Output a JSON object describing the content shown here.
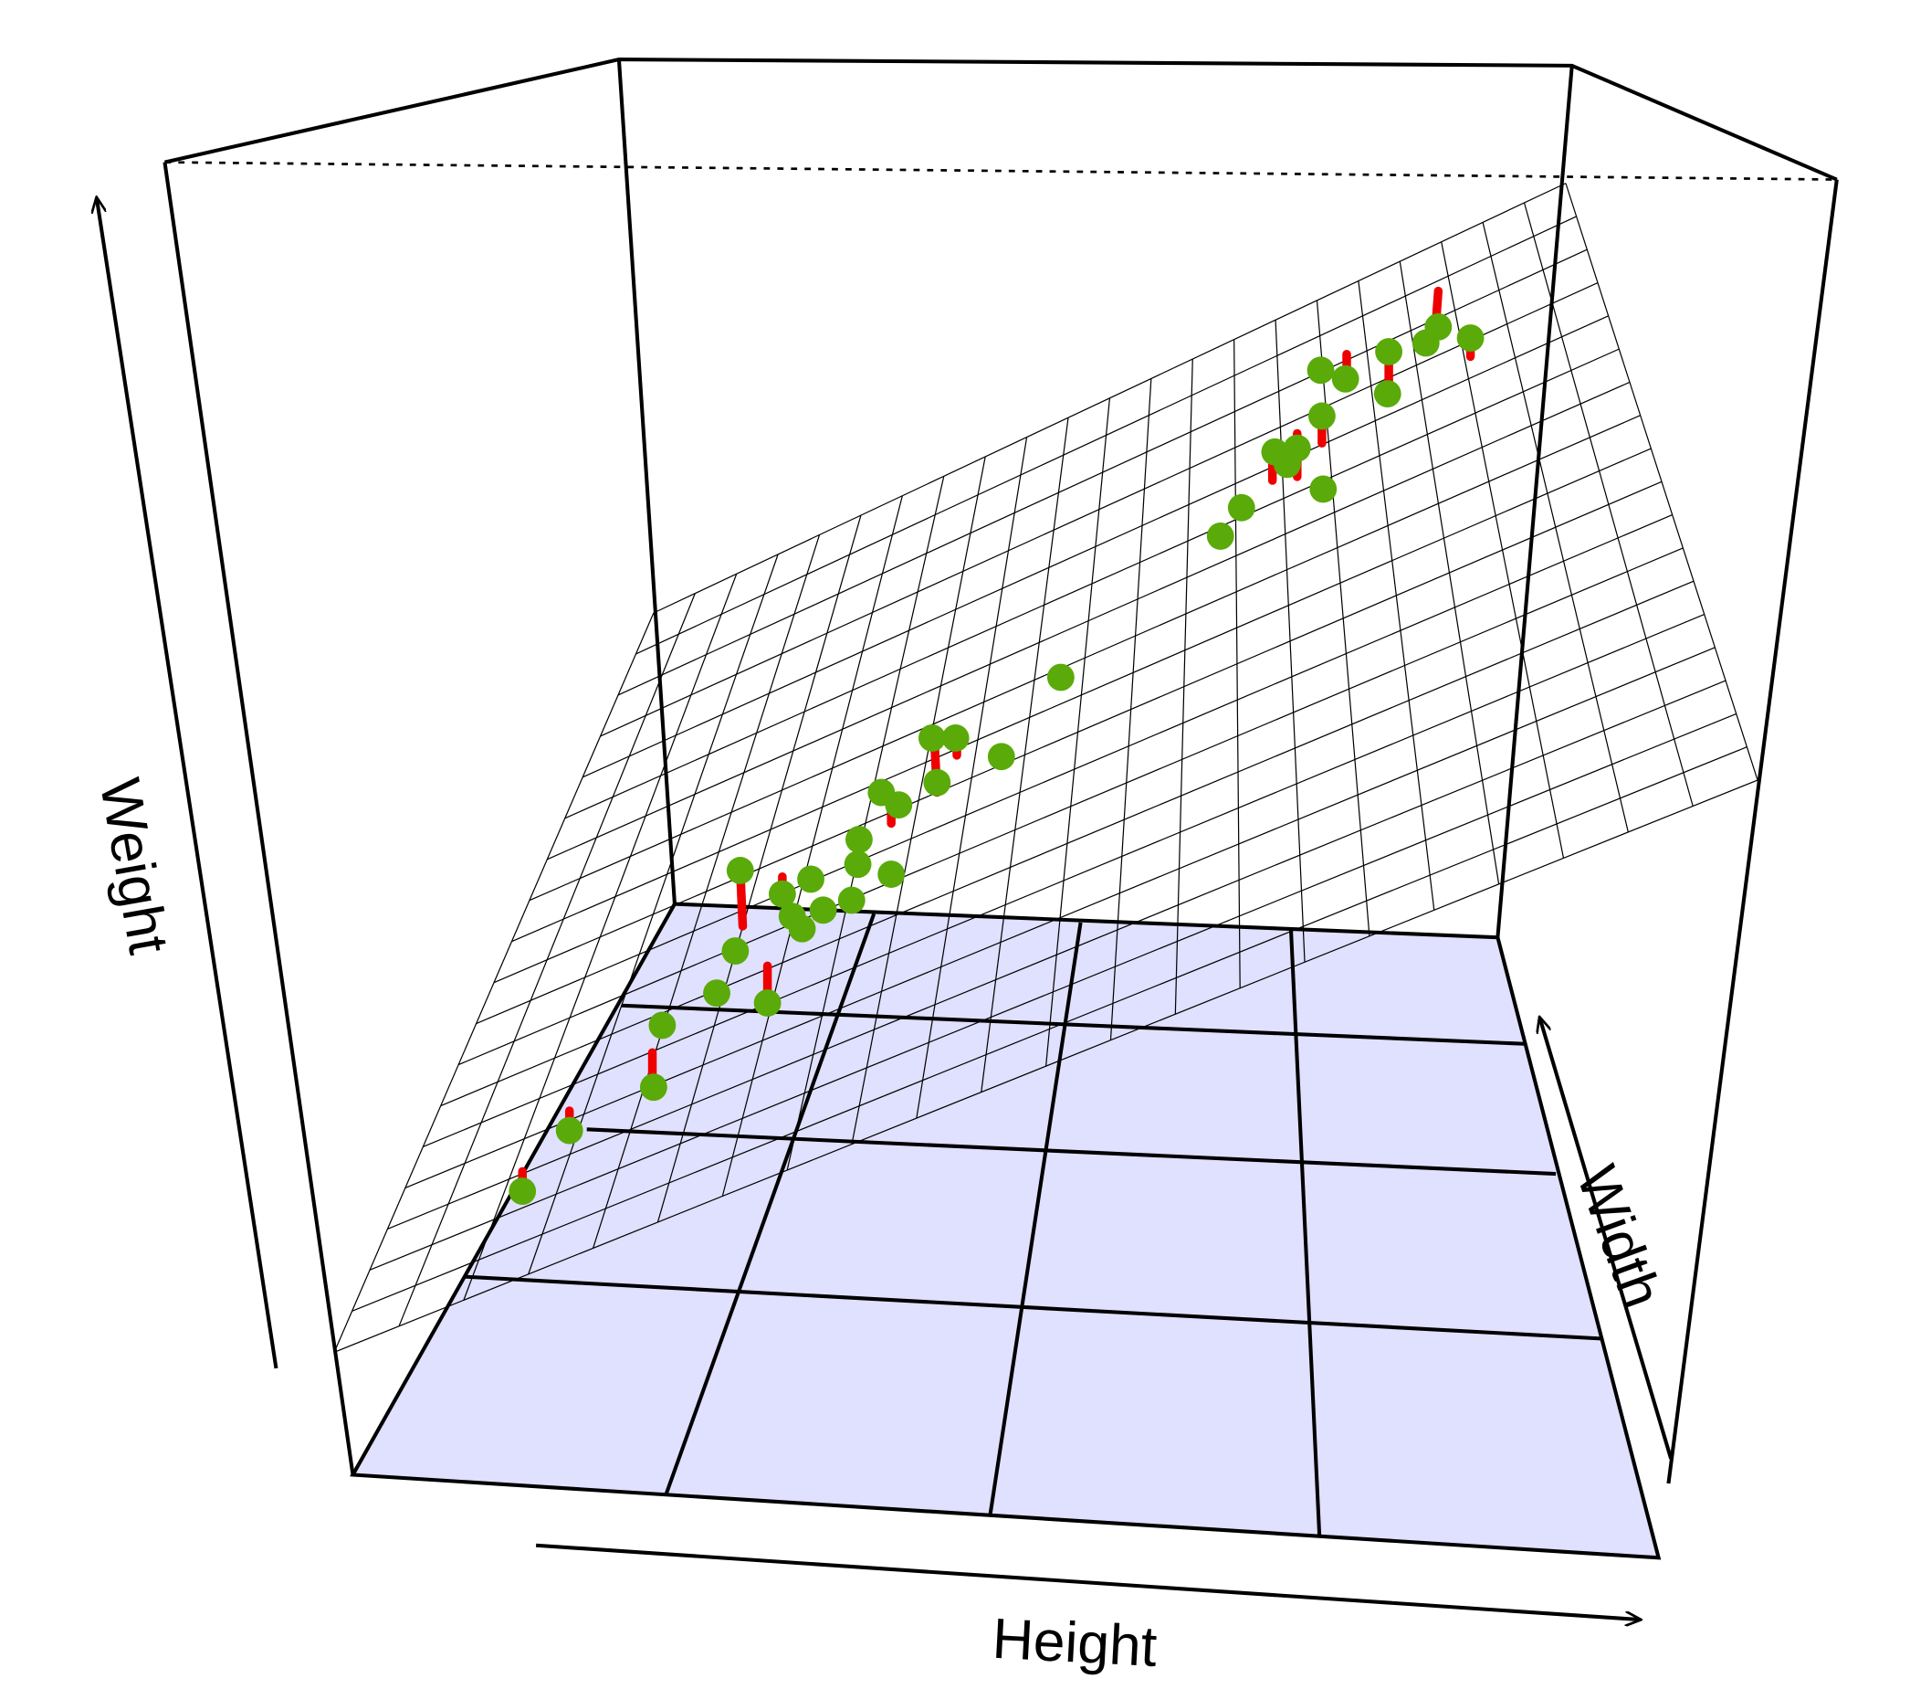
{
  "chart_data": {
    "type": "scatter3d",
    "x_label": "Height",
    "y_label": "Width",
    "z_label": "Weight"
  }
}
